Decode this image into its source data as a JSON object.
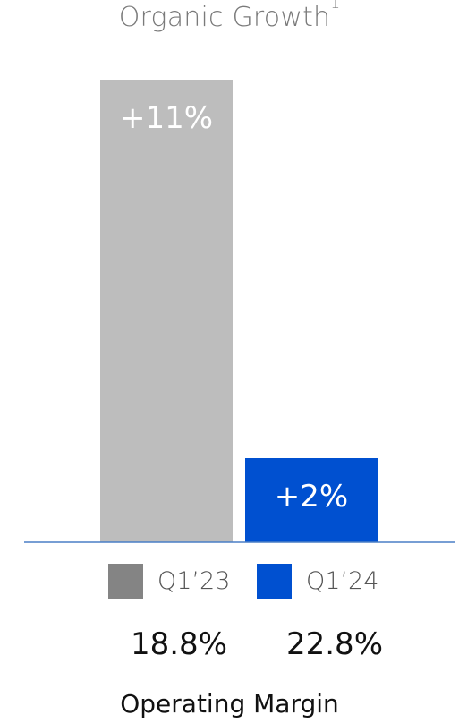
{
  "chart_data": {
    "type": "bar",
    "title": "Organic Growth",
    "title_superscript": "1",
    "categories": [
      "Q1’23",
      "Q1’24"
    ],
    "values": [
      11,
      2
    ],
    "value_labels": [
      "+11%",
      "+2%"
    ],
    "colors": [
      "#bdbdbd",
      "#0050d0"
    ],
    "legend_colors": [
      "#848484",
      "#0050d0"
    ],
    "baseline_color": "#4a7fc6",
    "ylim": [
      0,
      11
    ],
    "legend_position": "bottom"
  },
  "legend": {
    "items": [
      {
        "label": "Q1’23"
      },
      {
        "label": "Q1’24"
      }
    ]
  },
  "operating_margin": {
    "values": [
      "18.8%",
      "22.8%"
    ],
    "label": "Operating Margin"
  }
}
